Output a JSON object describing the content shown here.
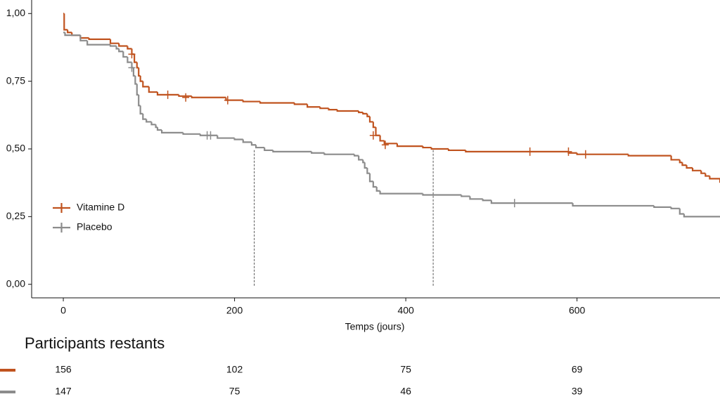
{
  "chart_data": {
    "type": "km",
    "xlabel": "Temps (jours)",
    "xlim": [
      -37,
      767
    ],
    "ylim": [
      -0.05,
      1.05
    ],
    "xticks": [
      0,
      200,
      400,
      600
    ],
    "yticks": [
      {
        "value": 0,
        "label": "0,00"
      },
      {
        "value": 0.25,
        "label": "0,25"
      },
      {
        "value": 0.5,
        "label": "0,50"
      },
      {
        "value": 0.75,
        "label": "0,75"
      },
      {
        "value": 1,
        "label": "1,00"
      }
    ],
    "legend": "left",
    "series": [
      {
        "name": "Vitamine D",
        "color": "#c0531f",
        "x": [
          0,
          1,
          5,
          10,
          20,
          30,
          55,
          65,
          75,
          80,
          83,
          86,
          88,
          90,
          93,
          100,
          110,
          135,
          150,
          190,
          210,
          230,
          270,
          285,
          300,
          310,
          320,
          345,
          350,
          355,
          358,
          362,
          365,
          370,
          375,
          390,
          420,
          430,
          450,
          470,
          590,
          600,
          660,
          710,
          720,
          723,
          728,
          735,
          745,
          750,
          755,
          767
        ],
        "values": [
          1.0,
          0.94,
          0.93,
          0.92,
          0.91,
          0.905,
          0.89,
          0.88,
          0.87,
          0.85,
          0.82,
          0.8,
          0.77,
          0.75,
          0.73,
          0.71,
          0.7,
          0.695,
          0.69,
          0.68,
          0.675,
          0.67,
          0.665,
          0.655,
          0.65,
          0.645,
          0.64,
          0.635,
          0.63,
          0.62,
          0.6,
          0.58,
          0.55,
          0.53,
          0.52,
          0.51,
          0.505,
          0.5,
          0.495,
          0.49,
          0.485,
          0.48,
          0.475,
          0.46,
          0.45,
          0.44,
          0.43,
          0.42,
          0.41,
          0.4,
          0.39,
          0.375
        ],
        "censored_x": [
          80,
          122,
          143,
          192,
          362,
          376,
          545,
          590,
          610
        ],
        "censored_y": [
          0.85,
          0.7,
          0.69,
          0.68,
          0.55,
          0.515,
          0.49,
          0.49,
          0.48
        ]
      },
      {
        "name": "Placebo",
        "color": "#8c8c8c",
        "x": [
          0,
          2,
          20,
          28,
          55,
          62,
          65,
          70,
          75,
          80,
          82,
          84,
          86,
          88,
          90,
          93,
          97,
          103,
          108,
          110,
          115,
          140,
          160,
          180,
          200,
          210,
          220,
          225,
          235,
          245,
          290,
          305,
          340,
          345,
          350,
          352,
          355,
          358,
          362,
          366,
          370,
          420,
          465,
          475,
          490,
          500,
          595,
          690,
          710,
          720,
          725,
          767
        ],
        "values": [
          0.93,
          0.92,
          0.9,
          0.885,
          0.88,
          0.87,
          0.86,
          0.84,
          0.82,
          0.8,
          0.77,
          0.74,
          0.7,
          0.66,
          0.63,
          0.61,
          0.6,
          0.59,
          0.58,
          0.57,
          0.56,
          0.555,
          0.55,
          0.54,
          0.535,
          0.525,
          0.515,
          0.505,
          0.495,
          0.49,
          0.485,
          0.48,
          0.475,
          0.46,
          0.45,
          0.43,
          0.41,
          0.38,
          0.36,
          0.345,
          0.335,
          0.33,
          0.325,
          0.315,
          0.31,
          0.3,
          0.29,
          0.285,
          0.28,
          0.26,
          0.25,
          0.25
        ],
        "censored_x": [
          80,
          168,
          172,
          527
        ],
        "censored_y": [
          0.8,
          0.55,
          0.55,
          0.3
        ]
      }
    ],
    "median_x": [
      223,
      432
    ],
    "risk_table": {
      "title": "Participants restants",
      "rows": [
        [
          156,
          102,
          75,
          69
        ],
        [
          147,
          75,
          46,
          39
        ]
      ]
    }
  }
}
